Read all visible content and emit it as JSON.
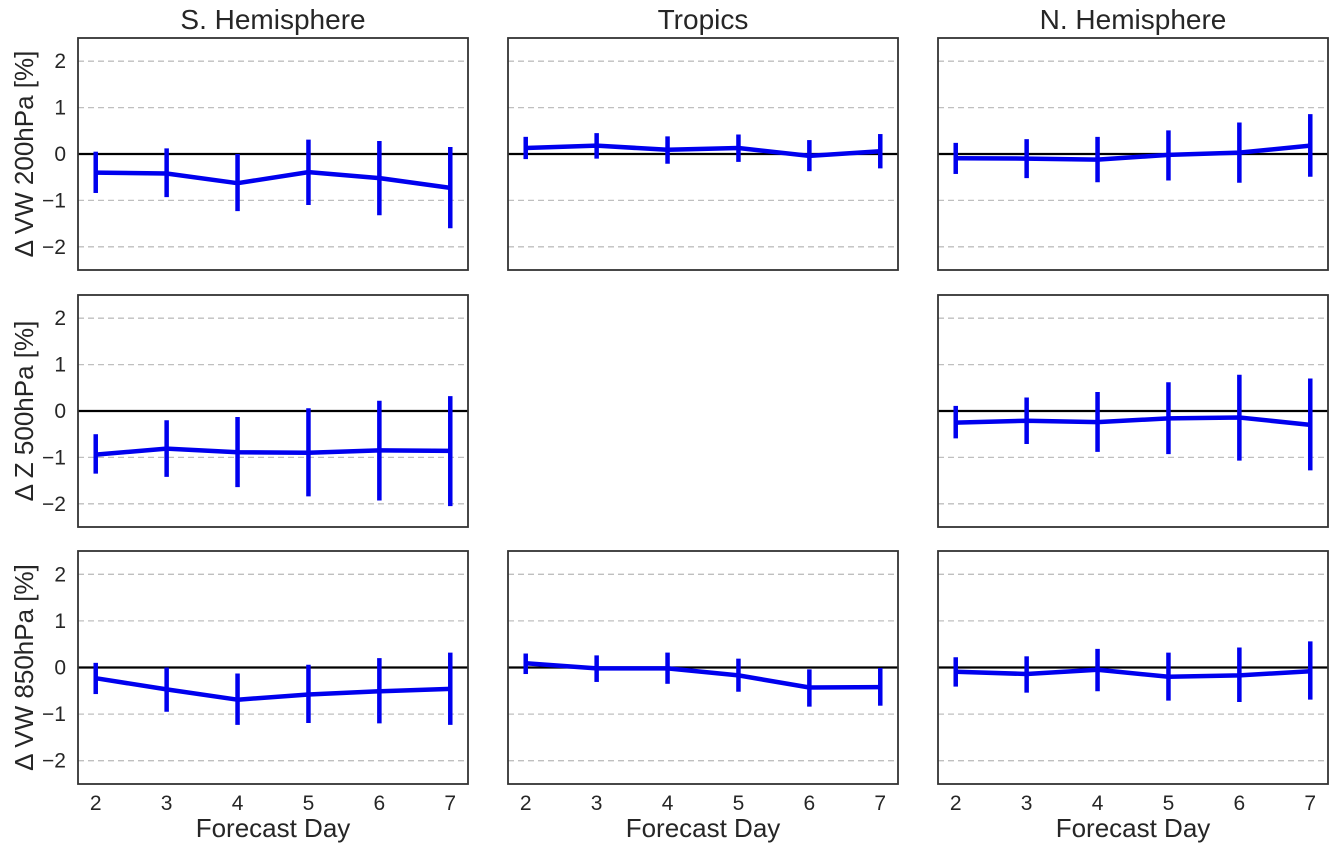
{
  "colors": {
    "series": "#0000ee",
    "zero_line": "#000000",
    "grid": "#bfbfbf",
    "frame": "#333333",
    "text": "#262626"
  },
  "column_titles": [
    "S. Hemisphere",
    "Tropics",
    "N. Hemisphere"
  ],
  "row_labels": [
    "Δ VW 200hPa [%]",
    "Δ Z 500hPa [%]",
    "Δ VW 850hPa [%]"
  ],
  "xlabel": "Forecast Day",
  "chart_data": {
    "type": "line",
    "layout": "3x3 grid, shared axes",
    "x": [
      2,
      3,
      4,
      5,
      6,
      7
    ],
    "xlim": [
      1.75,
      7.25
    ],
    "ylim": [
      -2.5,
      2.5
    ],
    "xticks": [
      2,
      3,
      4,
      5,
      6,
      7
    ],
    "yticks": [
      -2,
      -1,
      0,
      1,
      2
    ],
    "grid": "horizontal dashed",
    "reference_line": 0,
    "panels": [
      {
        "row": 0,
        "col": 0,
        "values": [
          -0.4,
          -0.42,
          -0.63,
          -0.39,
          -0.52,
          -0.73
        ],
        "err_low": [
          -0.84,
          -0.93,
          -1.23,
          -1.1,
          -1.32,
          -1.6
        ],
        "err_high": [
          0.05,
          0.12,
          0.0,
          0.31,
          0.28,
          0.15
        ]
      },
      {
        "row": 0,
        "col": 1,
        "values": [
          0.13,
          0.18,
          0.09,
          0.13,
          -0.04,
          0.06
        ],
        "err_low": [
          -0.11,
          -0.1,
          -0.21,
          -0.17,
          -0.37,
          -0.31
        ],
        "err_high": [
          0.37,
          0.45,
          0.38,
          0.42,
          0.3,
          0.43
        ]
      },
      {
        "row": 0,
        "col": 2,
        "values": [
          -0.09,
          -0.1,
          -0.12,
          -0.02,
          0.03,
          0.18
        ],
        "err_low": [
          -0.43,
          -0.52,
          -0.61,
          -0.57,
          -0.62,
          -0.49
        ],
        "err_high": [
          0.24,
          0.32,
          0.37,
          0.51,
          0.68,
          0.86
        ]
      },
      {
        "row": 1,
        "col": 0,
        "values": [
          -0.94,
          -0.81,
          -0.89,
          -0.9,
          -0.85,
          -0.86
        ],
        "err_low": [
          -1.35,
          -1.42,
          -1.64,
          -1.84,
          -1.93,
          -2.05
        ],
        "err_high": [
          -0.5,
          -0.2,
          -0.13,
          0.06,
          0.22,
          0.32
        ]
      },
      {
        "row": 1,
        "col": 1,
        "values": null
      },
      {
        "row": 1,
        "col": 2,
        "values": [
          -0.25,
          -0.21,
          -0.24,
          -0.16,
          -0.14,
          -0.3
        ],
        "err_low": [
          -0.59,
          -0.71,
          -0.88,
          -0.93,
          -1.07,
          -1.28
        ],
        "err_high": [
          0.11,
          0.29,
          0.41,
          0.62,
          0.78,
          0.7
        ]
      },
      {
        "row": 2,
        "col": 0,
        "values": [
          -0.23,
          -0.47,
          -0.69,
          -0.58,
          -0.51,
          -0.46
        ],
        "err_low": [
          -0.57,
          -0.95,
          -1.23,
          -1.19,
          -1.2,
          -1.23
        ],
        "err_high": [
          0.1,
          0.0,
          -0.13,
          0.06,
          0.2,
          0.32
        ]
      },
      {
        "row": 2,
        "col": 1,
        "values": [
          0.09,
          -0.02,
          -0.02,
          -0.17,
          -0.43,
          -0.42
        ],
        "err_low": [
          -0.14,
          -0.31,
          -0.35,
          -0.52,
          -0.84,
          -0.82
        ],
        "err_high": [
          0.3,
          0.26,
          0.32,
          0.19,
          -0.04,
          -0.01
        ]
      },
      {
        "row": 2,
        "col": 2,
        "values": [
          -0.09,
          -0.14,
          -0.05,
          -0.2,
          -0.17,
          -0.08
        ],
        "err_low": [
          -0.41,
          -0.54,
          -0.51,
          -0.71,
          -0.74,
          -0.69
        ],
        "err_high": [
          0.22,
          0.24,
          0.4,
          0.32,
          0.43,
          0.56
        ]
      }
    ]
  }
}
